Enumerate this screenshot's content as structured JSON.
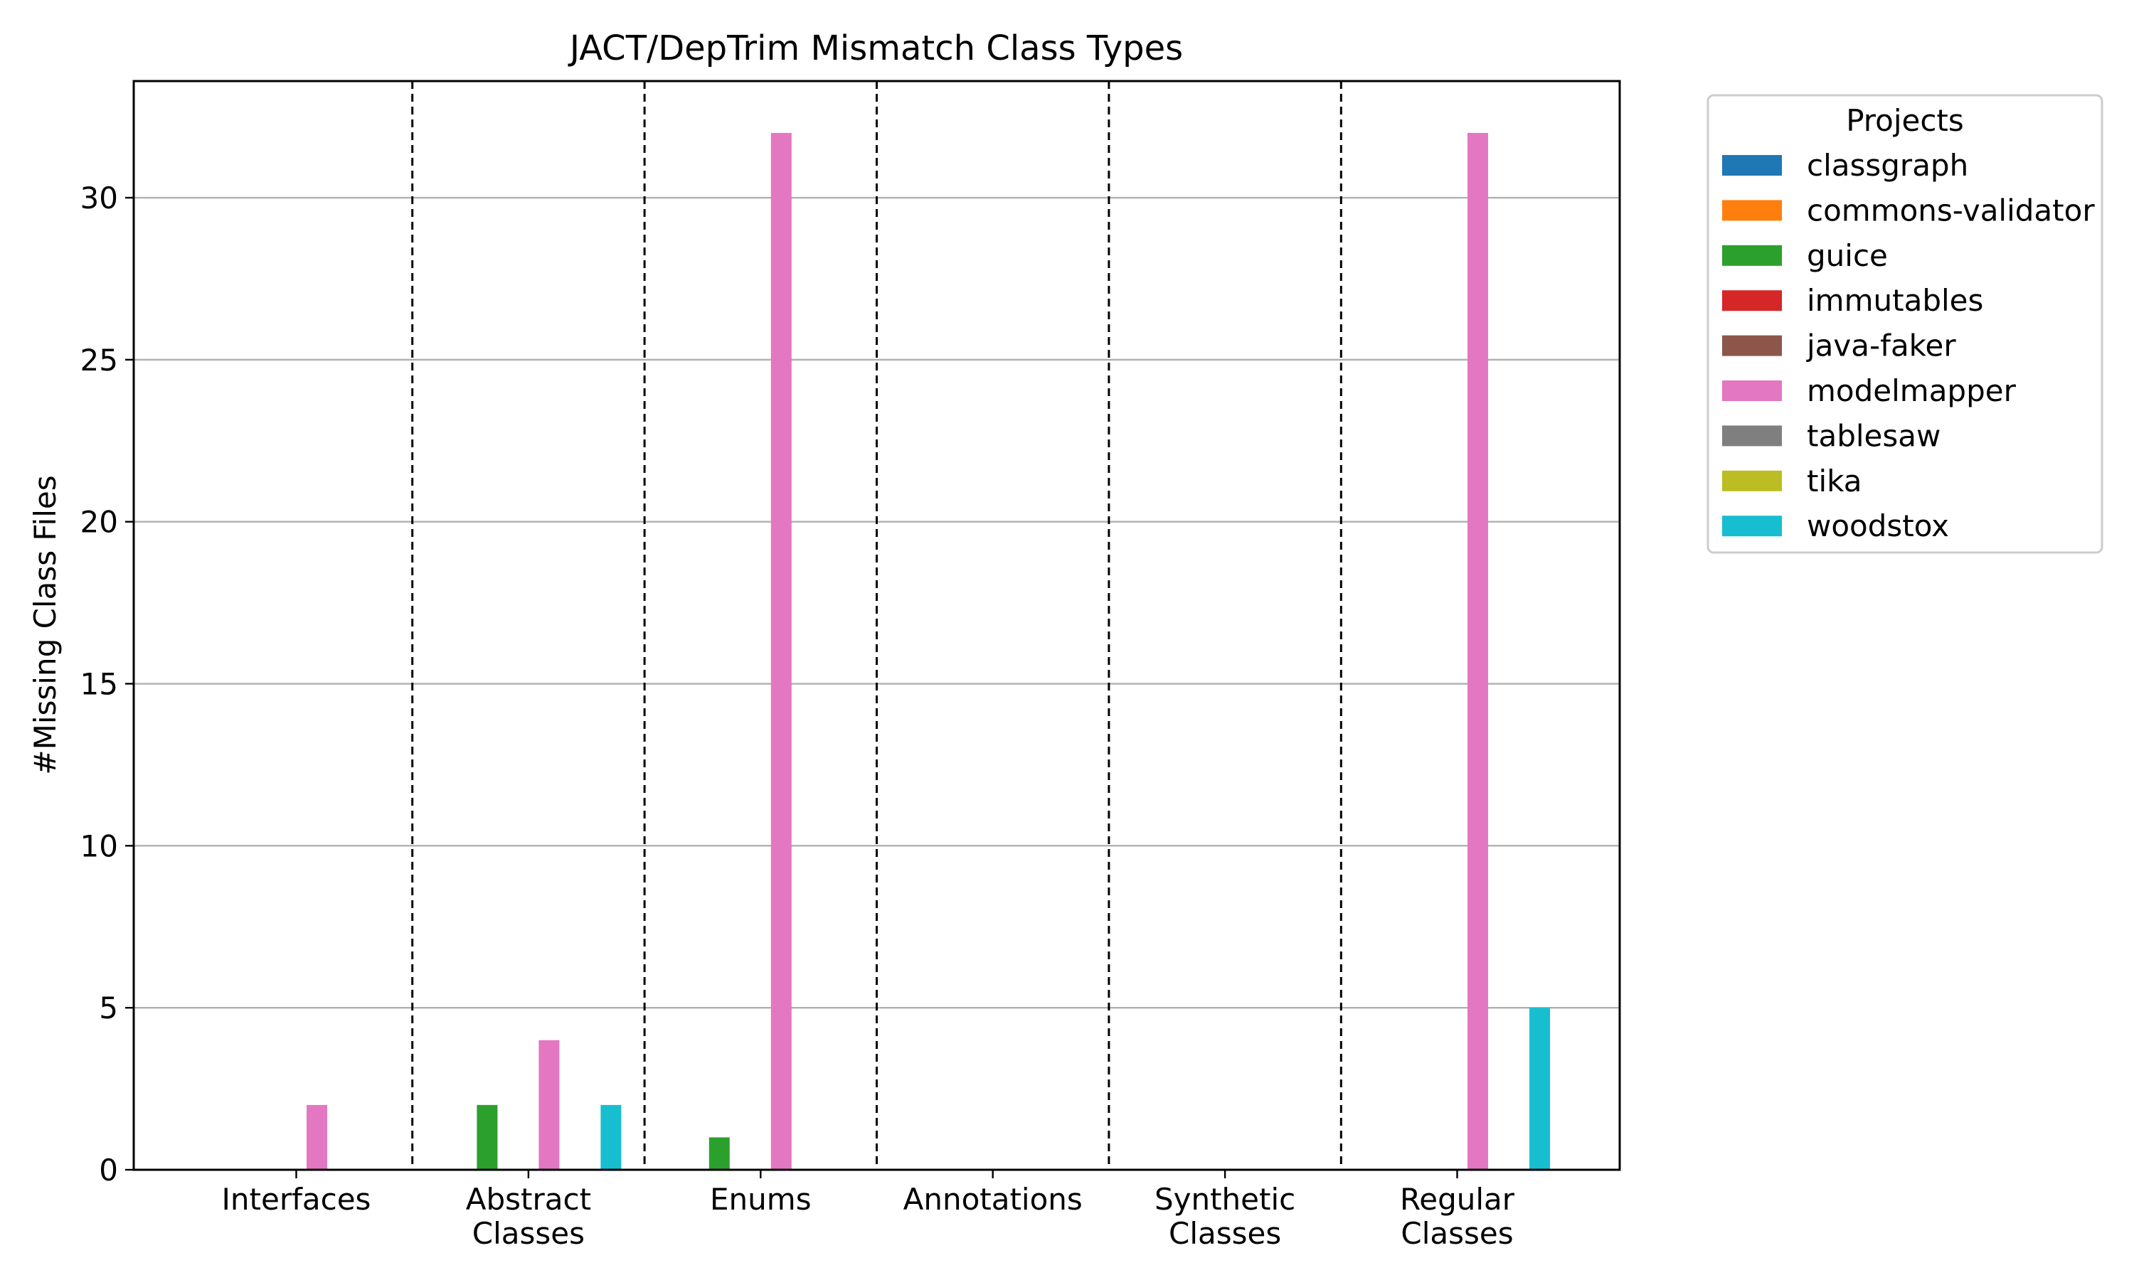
{
  "chart_data": {
    "type": "bar",
    "title": "JACT/DepTrim Mismatch Class Types",
    "xlabel": "",
    "ylabel": "#Missing Class Files",
    "ylim": [
      0,
      33.6
    ],
    "yticks": [
      0,
      5,
      10,
      15,
      20,
      25,
      30
    ],
    "grid": "y",
    "legend_title": "Projects",
    "legend_position": "outside-right",
    "categories": [
      [
        "Interfaces"
      ],
      [
        "Abstract",
        "Classes"
      ],
      [
        "Enums"
      ],
      [
        "Annotations"
      ],
      [
        "Synthetic",
        "Classes"
      ],
      [
        "Regular",
        "Classes"
      ]
    ],
    "series": [
      {
        "name": "classgraph",
        "color": "#1f77b4",
        "values": [
          0,
          0,
          0,
          0,
          0,
          0
        ]
      },
      {
        "name": "commons-validator",
        "color": "#ff7f0e",
        "values": [
          0,
          0,
          0,
          0,
          0,
          0
        ]
      },
      {
        "name": "guice",
        "color": "#2ca02c",
        "values": [
          0,
          2,
          1,
          0,
          0,
          0
        ]
      },
      {
        "name": "immutables",
        "color": "#d62728",
        "values": [
          0,
          0,
          0,
          0,
          0,
          0
        ]
      },
      {
        "name": "java-faker",
        "color": "#8c564b",
        "values": [
          0,
          0,
          0,
          0,
          0,
          0
        ]
      },
      {
        "name": "modelmapper",
        "color": "#e377c2",
        "values": [
          2,
          4,
          32,
          0,
          0,
          32
        ]
      },
      {
        "name": "tablesaw",
        "color": "#7f7f7f",
        "values": [
          0,
          0,
          0,
          0,
          0,
          0
        ]
      },
      {
        "name": "tika",
        "color": "#bcbd22",
        "values": [
          0,
          0,
          0,
          0,
          0,
          0
        ]
      },
      {
        "name": "woodstox",
        "color": "#17becf",
        "values": [
          0,
          2,
          0,
          0,
          0,
          5
        ]
      }
    ]
  }
}
